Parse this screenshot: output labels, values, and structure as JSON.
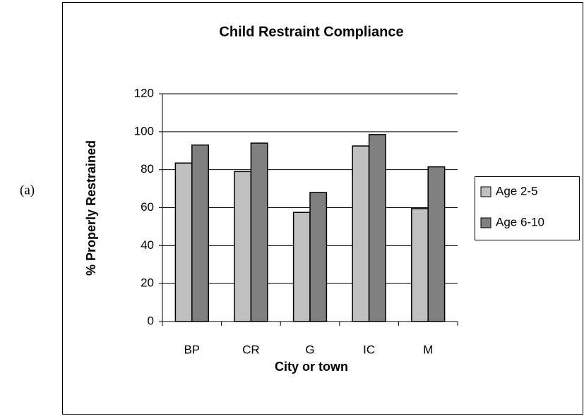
{
  "panel_label": "(a)",
  "chart_data": {
    "type": "bar",
    "title": "Child Restraint Compliance",
    "x_label": "City or town",
    "y_label": "% Properly Restrained",
    "categories": [
      "BP",
      "CR",
      "G",
      "IC",
      "M"
    ],
    "series": [
      {
        "name": "Age 2-5",
        "color": "#c0c0c0",
        "values": [
          83.5,
          79,
          57.5,
          92.5,
          59.5
        ]
      },
      {
        "name": "Age 6-10",
        "color": "#808080",
        "values": [
          93,
          94,
          68,
          98.5,
          81.5
        ]
      }
    ],
    "ylim": [
      0,
      120
    ],
    "yticks": [
      0,
      20,
      40,
      60,
      80,
      100,
      120
    ],
    "grid": true,
    "legend": "right"
  }
}
